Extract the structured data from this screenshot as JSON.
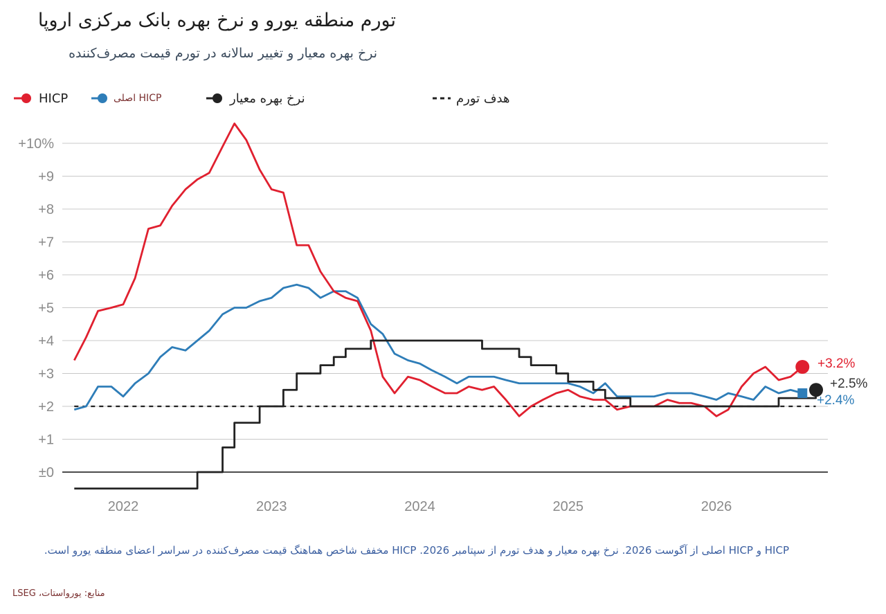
{
  "header": {
    "title": "تورم منطقه یورو و نرخ بهره بانک مرکزی اروپا",
    "subtitle": "نرخ بهره معیار و تغییر سالانه در تورم قیمت مصرف‌کننده"
  },
  "legend": [
    {
      "label": "HICP",
      "color": "#e0202f",
      "kind": "dot-line"
    },
    {
      "label": "HICP اصلی",
      "color": "#2e7db8",
      "kind": "dot-line"
    },
    {
      "label": "نرخ بهره معیار",
      "color": "#222222",
      "kind": "dot-line"
    },
    {
      "label": "هدف تورم",
      "color": "#222222",
      "kind": "dashed"
    }
  ],
  "footer": {
    "note": "HICP و HICP اصلی از آگوست 2026. نرخ بهره معیار و هدف تورم از سپتامبر 2026. HICP مخفف شاخص هماهنگ قیمت مصرف‌کننده در سراسر اعضای منطقه یورو است.",
    "source": "منابع: یورواستات، LSEG"
  },
  "colors": {
    "hicp": "#e0202f",
    "core": "#2e7db8",
    "rate": "#222222",
    "target": "#222222",
    "grid": "#c8c8c8"
  },
  "chart_data": {
    "type": "line",
    "x_unit": "year",
    "xlim": [
      2021.67,
      2026.75
    ],
    "ylim": [
      -0.5,
      10.7
    ],
    "yticks": [
      0,
      1,
      2,
      3,
      4,
      5,
      6,
      7,
      8,
      9,
      10
    ],
    "ytick_labels": [
      "±0",
      "+1",
      "+2",
      "+3",
      "+4",
      "+5",
      "+6",
      "+7",
      "+8",
      "+9",
      "+10%"
    ],
    "xticks": [
      2022,
      2023,
      2024,
      2025,
      2026
    ],
    "xtick_labels": [
      "2022",
      "2023",
      "2024",
      "2025",
      "2026"
    ],
    "series": [
      {
        "name": "HICP",
        "key": "hicp",
        "x": [
          2021.67,
          2021.75,
          2021.83,
          2021.92,
          2022.0,
          2022.08,
          2022.17,
          2022.25,
          2022.33,
          2022.42,
          2022.5,
          2022.58,
          2022.67,
          2022.75,
          2022.83,
          2022.92,
          2023.0,
          2023.08,
          2023.17,
          2023.25,
          2023.33,
          2023.42,
          2023.5,
          2023.58,
          2023.67,
          2023.75,
          2023.83,
          2023.92,
          2024.0,
          2024.08,
          2024.17,
          2024.25,
          2024.33,
          2024.42,
          2024.5,
          2024.58,
          2024.67,
          2024.75,
          2024.83,
          2024.92,
          2025.0,
          2025.08,
          2025.17,
          2025.25,
          2025.33,
          2025.42,
          2025.5,
          2025.58,
          2025.67,
          2025.75,
          2025.83,
          2025.92,
          2026.0,
          2026.08,
          2026.17,
          2026.25,
          2026.33,
          2026.42,
          2026.5,
          2026.58
        ],
        "values": [
          3.4,
          4.1,
          4.9,
          5.0,
          5.1,
          5.9,
          7.4,
          7.5,
          8.1,
          8.6,
          8.9,
          9.1,
          9.9,
          10.6,
          10.1,
          9.2,
          8.6,
          8.5,
          6.9,
          6.9,
          6.1,
          5.5,
          5.3,
          5.2,
          4.3,
          2.9,
          2.4,
          2.9,
          2.8,
          2.6,
          2.4,
          2.4,
          2.6,
          2.5,
          2.6,
          2.2,
          1.7,
          2.0,
          2.2,
          2.4,
          2.5,
          2.3,
          2.2,
          2.2,
          1.9,
          2.0,
          2.0,
          2.0,
          2.2,
          2.1,
          2.1,
          2.0,
          1.7,
          1.9,
          2.6,
          3.0,
          3.2,
          2.8,
          2.9,
          3.2
        ],
        "end_label": "+3.2%"
      },
      {
        "name": "HICP اصلی",
        "key": "core",
        "x": [
          2021.67,
          2021.75,
          2021.83,
          2021.92,
          2022.0,
          2022.08,
          2022.17,
          2022.25,
          2022.33,
          2022.42,
          2022.5,
          2022.58,
          2022.67,
          2022.75,
          2022.83,
          2022.92,
          2023.0,
          2023.08,
          2023.17,
          2023.25,
          2023.33,
          2023.42,
          2023.5,
          2023.58,
          2023.67,
          2023.75,
          2023.83,
          2023.92,
          2024.0,
          2024.08,
          2024.17,
          2024.25,
          2024.33,
          2024.42,
          2024.5,
          2024.58,
          2024.67,
          2024.75,
          2024.83,
          2024.92,
          2025.0,
          2025.08,
          2025.17,
          2025.25,
          2025.33,
          2025.42,
          2025.5,
          2025.58,
          2025.67,
          2025.75,
          2025.83,
          2025.92,
          2026.0,
          2026.08,
          2026.17,
          2026.25,
          2026.33,
          2026.42,
          2026.5,
          2026.58
        ],
        "values": [
          1.9,
          2.0,
          2.6,
          2.6,
          2.3,
          2.7,
          3.0,
          3.5,
          3.8,
          3.7,
          4.0,
          4.3,
          4.8,
          5.0,
          5.0,
          5.2,
          5.3,
          5.6,
          5.7,
          5.6,
          5.3,
          5.5,
          5.5,
          5.3,
          4.5,
          4.2,
          3.6,
          3.4,
          3.3,
          3.1,
          2.9,
          2.7,
          2.9,
          2.9,
          2.9,
          2.8,
          2.7,
          2.7,
          2.7,
          2.7,
          2.7,
          2.6,
          2.4,
          2.7,
          2.3,
          2.3,
          2.3,
          2.3,
          2.4,
          2.4,
          2.4,
          2.3,
          2.2,
          2.4,
          2.3,
          2.2,
          2.6,
          2.4,
          2.5,
          2.4
        ],
        "end_label": "+2.4%"
      },
      {
        "name": "نرخ بهره معیار",
        "key": "rate",
        "step": true,
        "x": [
          2021.67,
          2022.5,
          2022.67,
          2022.75,
          2022.92,
          2023.08,
          2023.17,
          2023.33,
          2023.42,
          2023.5,
          2023.67,
          2024.42,
          2024.67,
          2024.75,
          2024.92,
          2025.0,
          2025.17,
          2025.25,
          2025.42,
          2026.42,
          2026.67
        ],
        "values": [
          -0.5,
          0.0,
          0.75,
          1.5,
          2.0,
          2.5,
          3.0,
          3.25,
          3.5,
          3.75,
          4.0,
          3.75,
          3.5,
          3.25,
          3.0,
          2.75,
          2.5,
          2.25,
          2.0,
          2.25,
          2.5
        ],
        "end_label": "+2.5%"
      },
      {
        "name": "هدف تورم",
        "key": "target",
        "dashed": true,
        "x": [
          2021.67,
          2026.67
        ],
        "values": [
          2.0,
          2.0
        ]
      }
    ]
  }
}
